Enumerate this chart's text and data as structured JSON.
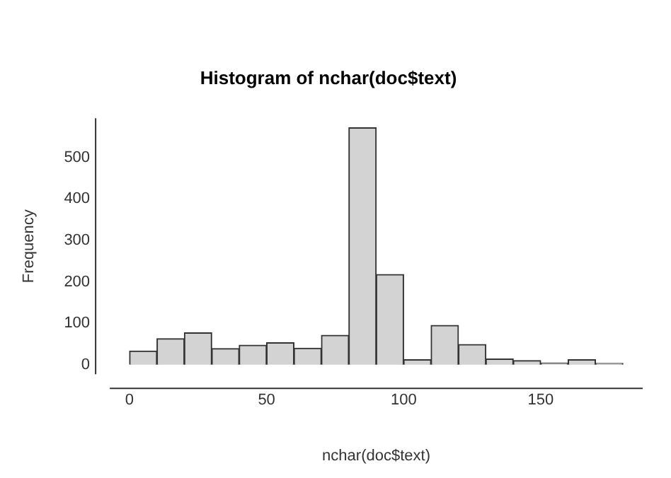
{
  "chart_data": {
    "type": "histogram",
    "title": "Histogram of nchar(doc$text)",
    "xlabel": "nchar(doc$text)",
    "ylabel": "Frequency",
    "bins": [
      0,
      10,
      20,
      30,
      40,
      50,
      60,
      70,
      80,
      90,
      100,
      110,
      120,
      130,
      140,
      150,
      160,
      170,
      180
    ],
    "values": [
      33,
      63,
      77,
      39,
      47,
      53,
      40,
      71,
      572,
      218,
      12,
      95,
      49,
      14,
      10,
      4,
      12,
      3
    ],
    "color": "#d3d3d3",
    "xlim": [
      -7.2,
      187.2
    ],
    "xticks": [
      0,
      50,
      100,
      150
    ],
    "ylim": [
      -22.9,
      594.9
    ],
    "yticks": [
      0,
      100,
      200,
      300,
      400,
      500
    ],
    "grid": false,
    "legend": false
  }
}
